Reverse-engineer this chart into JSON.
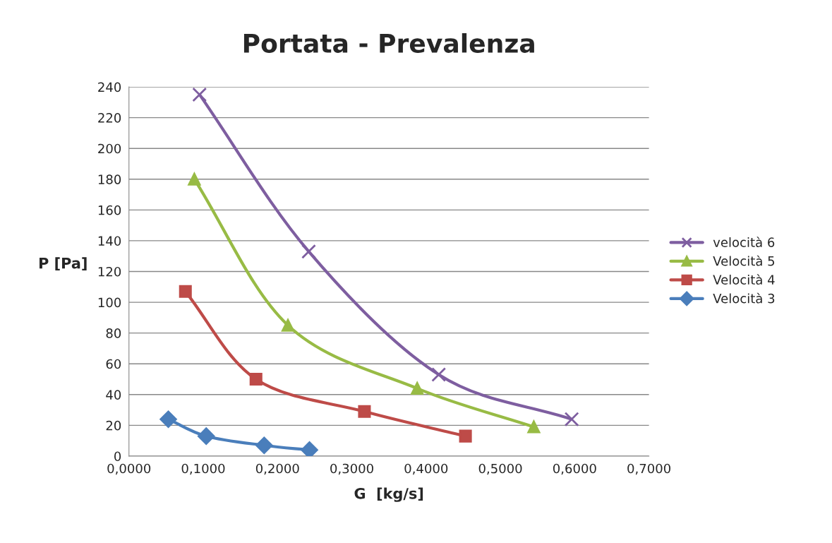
{
  "chart_data": {
    "type": "line",
    "title": "Portata - Prevalenza",
    "xlabel": "G  [kg/s]",
    "ylabel": "P [Pa]",
    "xlim": [
      0,
      0.7
    ],
    "ylim": [
      0,
      240
    ],
    "xticks": [
      {
        "value": 0,
        "label": "0,0000"
      },
      {
        "value": 0.1,
        "label": "0,1000"
      },
      {
        "value": 0.2,
        "label": "0,2000"
      },
      {
        "value": 0.3,
        "label": "0,3000"
      },
      {
        "value": 0.4,
        "label": "0,4000"
      },
      {
        "value": 0.5,
        "label": "0,5000"
      },
      {
        "value": 0.6,
        "label": "0,6000"
      },
      {
        "value": 0.7,
        "label": "0,7000"
      }
    ],
    "yticks": [
      0,
      20,
      40,
      60,
      80,
      100,
      120,
      140,
      160,
      180,
      200,
      220,
      240
    ],
    "grid": "y",
    "legend": "right",
    "series": [
      {
        "name": "velocità 6",
        "color": "#7e5ea0",
        "marker": "cross",
        "x": [
          0.095,
          0.242,
          0.417,
          0.596
        ],
        "values": [
          235,
          133,
          53,
          24
        ]
      },
      {
        "name": "Velocità 5",
        "color": "#98bb45",
        "marker": "triangle",
        "x": [
          0.088,
          0.214,
          0.388,
          0.545
        ],
        "values": [
          180,
          85,
          44,
          19
        ]
      },
      {
        "name": "Velocità 4",
        "color": "#be4b48",
        "marker": "square",
        "x": [
          0.076,
          0.171,
          0.317,
          0.453
        ],
        "values": [
          107,
          50,
          29,
          13
        ]
      },
      {
        "name": "Velocità 3",
        "color": "#4a7ebb",
        "marker": "diamond",
        "x": [
          0.053,
          0.104,
          0.182,
          0.243
        ],
        "values": [
          24,
          13,
          7,
          4
        ]
      }
    ]
  }
}
